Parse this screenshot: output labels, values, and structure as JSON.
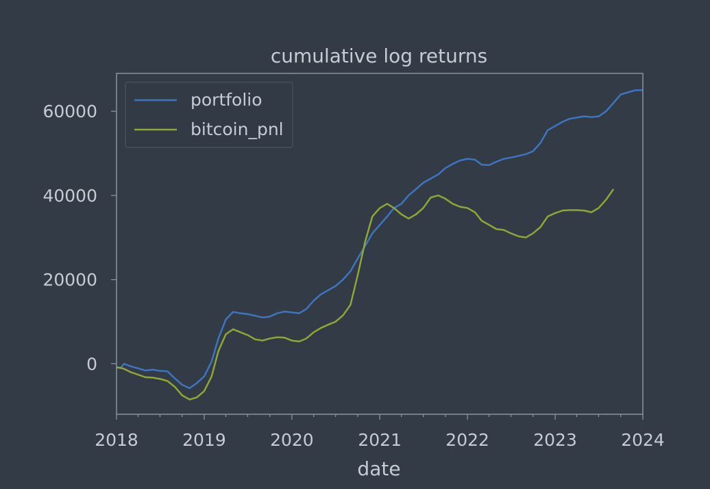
{
  "colors": {
    "background": "#333b47",
    "axes_edge": "#8a93a1",
    "text": "#c7ccd4",
    "portfolio": "#3f75bf",
    "bitcoin_pnl": "#8ea833"
  },
  "chart_data": {
    "type": "line",
    "title": "cumulative log returns",
    "xlabel": "date",
    "ylabel": "",
    "xlim": [
      "2018-01-01",
      "2024-01-01"
    ],
    "ylim": [
      -12000,
      69000
    ],
    "x_ticks": [
      "2018",
      "2019",
      "2020",
      "2021",
      "2022",
      "2023",
      "2024"
    ],
    "y_ticks": [
      0,
      20000,
      40000,
      60000
    ],
    "y_tick_labels": [
      "0",
      "20000",
      "40000",
      "60000"
    ],
    "grid": false,
    "legend": "upper left",
    "series": [
      {
        "name": "portfolio",
        "color": "#3f75bf",
        "points": [
          [
            "2018-01-01",
            -1000
          ],
          [
            "2018-01-20",
            -900
          ],
          [
            "2018-02-01",
            0
          ],
          [
            "2018-03-01",
            -600
          ],
          [
            "2018-04-01",
            -1100
          ],
          [
            "2018-05-01",
            -1600
          ],
          [
            "2018-06-01",
            -1400
          ],
          [
            "2018-07-01",
            -1700
          ],
          [
            "2018-08-01",
            -1800
          ],
          [
            "2018-09-01",
            -3500
          ],
          [
            "2018-10-01",
            -5000
          ],
          [
            "2018-11-01",
            -5800
          ],
          [
            "2018-12-01",
            -4600
          ],
          [
            "2019-01-01",
            -3000
          ],
          [
            "2019-02-01",
            500
          ],
          [
            "2019-03-01",
            6000
          ],
          [
            "2019-04-01",
            10500
          ],
          [
            "2019-05-01",
            12300
          ],
          [
            "2019-06-01",
            12000
          ],
          [
            "2019-07-01",
            11800
          ],
          [
            "2019-08-01",
            11400
          ],
          [
            "2019-09-01",
            11000
          ],
          [
            "2019-10-01",
            11200
          ],
          [
            "2019-11-01",
            12000
          ],
          [
            "2019-12-01",
            12400
          ],
          [
            "2020-01-01",
            12200
          ],
          [
            "2020-02-01",
            12000
          ],
          [
            "2020-03-01",
            13000
          ],
          [
            "2020-04-01",
            15000
          ],
          [
            "2020-05-01",
            16500
          ],
          [
            "2020-06-01",
            17500
          ],
          [
            "2020-07-01",
            18500
          ],
          [
            "2020-08-01",
            20000
          ],
          [
            "2020-09-01",
            22000
          ],
          [
            "2020-10-01",
            25000
          ],
          [
            "2020-11-01",
            28000
          ],
          [
            "2020-12-01",
            31000
          ],
          [
            "2021-01-01",
            33000
          ],
          [
            "2021-02-01",
            35000
          ],
          [
            "2021-03-01",
            37000
          ],
          [
            "2021-04-01",
            38000
          ],
          [
            "2021-05-01",
            40000
          ],
          [
            "2021-06-01",
            41500
          ],
          [
            "2021-07-01",
            43000
          ],
          [
            "2021-08-01",
            44000
          ],
          [
            "2021-09-01",
            45000
          ],
          [
            "2021-10-01",
            46500
          ],
          [
            "2021-11-01",
            47500
          ],
          [
            "2021-12-01",
            48300
          ],
          [
            "2022-01-01",
            48700
          ],
          [
            "2022-02-01",
            48500
          ],
          [
            "2022-03-01",
            47300
          ],
          [
            "2022-04-01",
            47200
          ],
          [
            "2022-05-01",
            48000
          ],
          [
            "2022-06-01",
            48700
          ],
          [
            "2022-07-01",
            49000
          ],
          [
            "2022-08-01",
            49400
          ],
          [
            "2022-09-01",
            49800
          ],
          [
            "2022-10-01",
            50500
          ],
          [
            "2022-11-01",
            52500
          ],
          [
            "2022-12-01",
            55500
          ],
          [
            "2023-01-01",
            56500
          ],
          [
            "2023-02-01",
            57500
          ],
          [
            "2023-03-01",
            58200
          ],
          [
            "2023-04-01",
            58500
          ],
          [
            "2023-05-01",
            58800
          ],
          [
            "2023-06-01",
            58600
          ],
          [
            "2023-07-01",
            58800
          ],
          [
            "2023-08-01",
            60000
          ],
          [
            "2023-09-01",
            62000
          ],
          [
            "2023-10-01",
            64000
          ],
          [
            "2023-11-01",
            64500
          ],
          [
            "2023-12-01",
            65000
          ],
          [
            "2024-01-01",
            65000
          ]
        ]
      },
      {
        "name": "bitcoin_pnl",
        "color": "#8ea833",
        "points": [
          [
            "2018-01-01",
            -800
          ],
          [
            "2018-02-01",
            -1200
          ],
          [
            "2018-03-01",
            -2000
          ],
          [
            "2018-04-01",
            -2600
          ],
          [
            "2018-05-01",
            -3200
          ],
          [
            "2018-06-01",
            -3300
          ],
          [
            "2018-07-01",
            -3600
          ],
          [
            "2018-08-01",
            -4100
          ],
          [
            "2018-09-01",
            -5500
          ],
          [
            "2018-10-01",
            -7500
          ],
          [
            "2018-11-01",
            -8500
          ],
          [
            "2018-12-01",
            -8000
          ],
          [
            "2019-01-01",
            -6500
          ],
          [
            "2019-02-01",
            -3000
          ],
          [
            "2019-03-01",
            3000
          ],
          [
            "2019-04-01",
            7000
          ],
          [
            "2019-05-01",
            8200
          ],
          [
            "2019-06-01",
            7500
          ],
          [
            "2019-07-01",
            6800
          ],
          [
            "2019-08-01",
            5800
          ],
          [
            "2019-09-01",
            5500
          ],
          [
            "2019-10-01",
            6000
          ],
          [
            "2019-11-01",
            6300
          ],
          [
            "2019-12-01",
            6200
          ],
          [
            "2020-01-01",
            5500
          ],
          [
            "2020-02-01",
            5300
          ],
          [
            "2020-03-01",
            6000
          ],
          [
            "2020-04-01",
            7500
          ],
          [
            "2020-05-01",
            8500
          ],
          [
            "2020-06-01",
            9300
          ],
          [
            "2020-07-01",
            10000
          ],
          [
            "2020-08-01",
            11500
          ],
          [
            "2020-09-01",
            14000
          ],
          [
            "2020-10-01",
            21000
          ],
          [
            "2020-11-01",
            29000
          ],
          [
            "2020-12-01",
            35000
          ],
          [
            "2021-01-01",
            37000
          ],
          [
            "2021-02-01",
            38000
          ],
          [
            "2021-03-01",
            37000
          ],
          [
            "2021-04-01",
            35500
          ],
          [
            "2021-05-01",
            34500
          ],
          [
            "2021-06-01",
            35500
          ],
          [
            "2021-07-01",
            37000
          ],
          [
            "2021-08-01",
            39500
          ],
          [
            "2021-09-01",
            40000
          ],
          [
            "2021-10-01",
            39200
          ],
          [
            "2021-11-01",
            38000
          ],
          [
            "2021-12-01",
            37300
          ],
          [
            "2022-01-01",
            37000
          ],
          [
            "2022-02-01",
            36000
          ],
          [
            "2022-03-01",
            34000
          ],
          [
            "2022-04-01",
            33000
          ],
          [
            "2022-05-01",
            32000
          ],
          [
            "2022-06-01",
            31800
          ],
          [
            "2022-07-01",
            31000
          ],
          [
            "2022-08-01",
            30300
          ],
          [
            "2022-09-01",
            30000
          ],
          [
            "2022-10-01",
            31000
          ],
          [
            "2022-11-01",
            32500
          ],
          [
            "2022-12-01",
            35000
          ],
          [
            "2023-01-01",
            35800
          ],
          [
            "2023-02-01",
            36400
          ],
          [
            "2023-03-01",
            36500
          ],
          [
            "2023-04-01",
            36500
          ],
          [
            "2023-05-01",
            36400
          ],
          [
            "2023-06-01",
            36000
          ],
          [
            "2023-07-01",
            37000
          ],
          [
            "2023-08-01",
            39000
          ],
          [
            "2023-09-01",
            41500
          ]
        ]
      }
    ]
  }
}
